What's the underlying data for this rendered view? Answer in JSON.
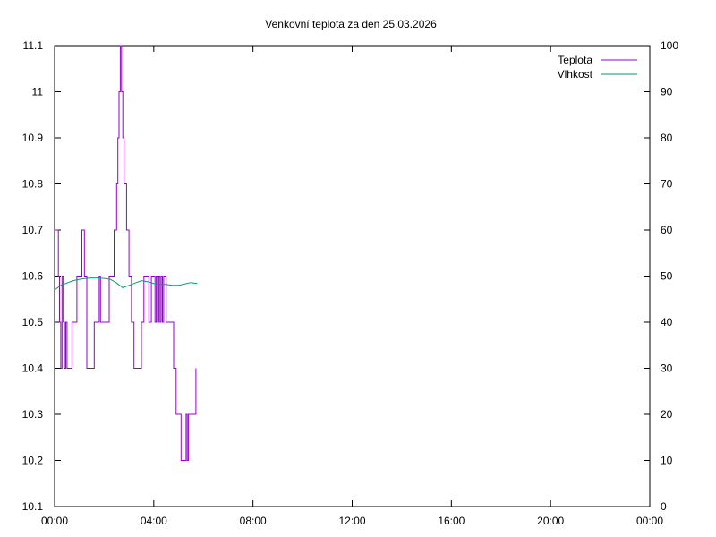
{
  "chart_data": {
    "type": "line",
    "title": "Venkovní teplota za den 25.03.2026",
    "x_ticks": [
      "00:00",
      "04:00",
      "08:00",
      "12:00",
      "16:00",
      "20:00",
      "00:00"
    ],
    "xlim_hours": [
      0,
      24
    ],
    "y_left": {
      "ylim": [
        10.1,
        11.1
      ],
      "ticks": [
        "10.1",
        "10.2",
        "10.3",
        "10.4",
        "10.5",
        "10.6",
        "10.7",
        "10.8",
        "10.9",
        "11",
        "11.1"
      ]
    },
    "y_right": {
      "ylim": [
        0,
        100
      ],
      "ticks": [
        "0",
        "10",
        "20",
        "30",
        "40",
        "50",
        "60",
        "70",
        "80",
        "90",
        "100"
      ]
    },
    "grid": false,
    "legend_position": "top-right",
    "series": [
      {
        "name": "Teplota",
        "axis": "left",
        "color": "#9400d3",
        "step": true,
        "x": [
          0.0,
          0.15,
          0.2,
          0.25,
          0.3,
          0.35,
          0.4,
          0.45,
          0.5,
          0.55,
          0.6,
          0.7,
          0.9,
          1.0,
          1.1,
          1.2,
          1.3,
          1.4,
          1.5,
          1.6,
          1.8,
          1.85,
          1.95,
          2.2,
          2.3,
          2.4,
          2.5,
          2.55,
          2.6,
          2.65,
          2.7,
          2.75,
          2.8,
          2.85,
          2.9,
          3.0,
          3.1,
          3.2,
          3.3,
          3.4,
          3.5,
          3.6,
          3.8,
          3.9,
          4.05,
          4.1,
          4.15,
          4.2,
          4.25,
          4.3,
          4.35,
          4.4,
          4.45,
          4.5,
          4.55,
          4.6,
          4.65,
          4.7,
          4.8,
          4.9,
          5.0,
          5.1,
          5.15,
          5.3,
          5.35,
          5.4,
          5.45,
          5.5,
          5.55,
          5.6,
          5.65,
          5.7
        ],
        "values": [
          10.7,
          10.6,
          10.5,
          10.4,
          10.6,
          10.5,
          10.4,
          10.5,
          10.4,
          10.4,
          10.4,
          10.5,
          10.6,
          10.6,
          10.7,
          10.6,
          10.4,
          10.4,
          10.4,
          10.5,
          10.6,
          10.5,
          10.5,
          10.6,
          10.6,
          10.7,
          10.8,
          10.9,
          11.0,
          11.1,
          11.0,
          10.9,
          10.8,
          10.8,
          10.7,
          10.6,
          10.5,
          10.4,
          10.4,
          10.4,
          10.5,
          10.6,
          10.5,
          10.6,
          10.5,
          10.6,
          10.5,
          10.6,
          10.5,
          10.6,
          10.5,
          10.6,
          10.6,
          10.5,
          10.5,
          10.5,
          10.5,
          10.5,
          10.4,
          10.3,
          10.3,
          10.2,
          10.2,
          10.3,
          10.2,
          10.3,
          10.3,
          10.3,
          10.3,
          10.3,
          10.3,
          10.4
        ]
      },
      {
        "name": "Vlhkost",
        "axis": "right",
        "color": "#009e73",
        "step": false,
        "x": [
          0.0,
          0.25,
          0.5,
          0.75,
          1.0,
          1.25,
          1.5,
          1.75,
          2.0,
          2.25,
          2.5,
          2.75,
          3.0,
          3.25,
          3.5,
          3.75,
          4.0,
          4.25,
          4.5,
          4.75,
          5.0,
          5.25,
          5.5,
          5.75
        ],
        "values": [
          47,
          48,
          48.5,
          49,
          49.3,
          49.5,
          49.6,
          49.6,
          49.5,
          49.3,
          48.5,
          47.5,
          48,
          48.5,
          49,
          48.8,
          48.4,
          48.2,
          48.2,
          48,
          48,
          48.3,
          48.6,
          48.4
        ]
      }
    ]
  }
}
